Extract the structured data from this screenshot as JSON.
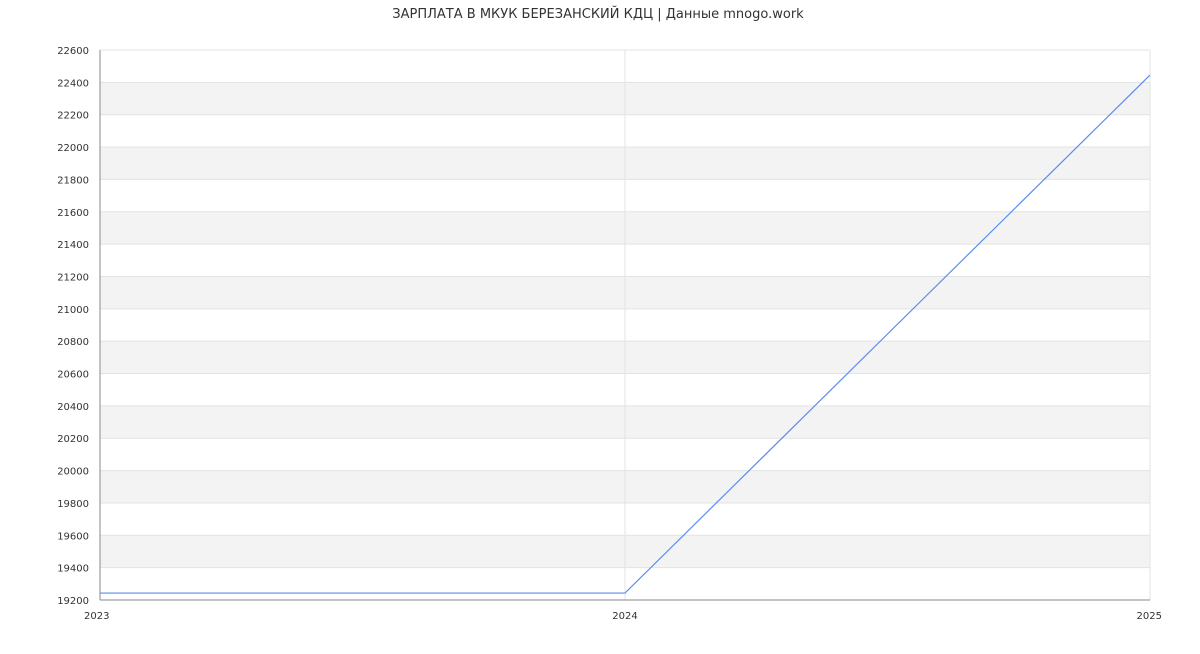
{
  "chart_data": {
    "type": "line",
    "title": "ЗАРПЛАТА В МКУК БЕРЕЗАНСКИЙ КДЦ | Данные mnogo.work",
    "xlabel": "",
    "ylabel": "",
    "x": [
      "2023",
      "2024",
      "2025"
    ],
    "series": [
      {
        "values": [
          19243,
          19243,
          22445
        ]
      }
    ],
    "ylim": [
      19200,
      22600
    ],
    "yticks": [
      19200,
      19400,
      19600,
      19800,
      20000,
      20200,
      20400,
      20600,
      20800,
      21000,
      21200,
      21400,
      21600,
      21800,
      22000,
      22200,
      22400,
      22600
    ],
    "grid": true,
    "line_color": "#5b8def",
    "band_color": "#f3f3f3"
  }
}
